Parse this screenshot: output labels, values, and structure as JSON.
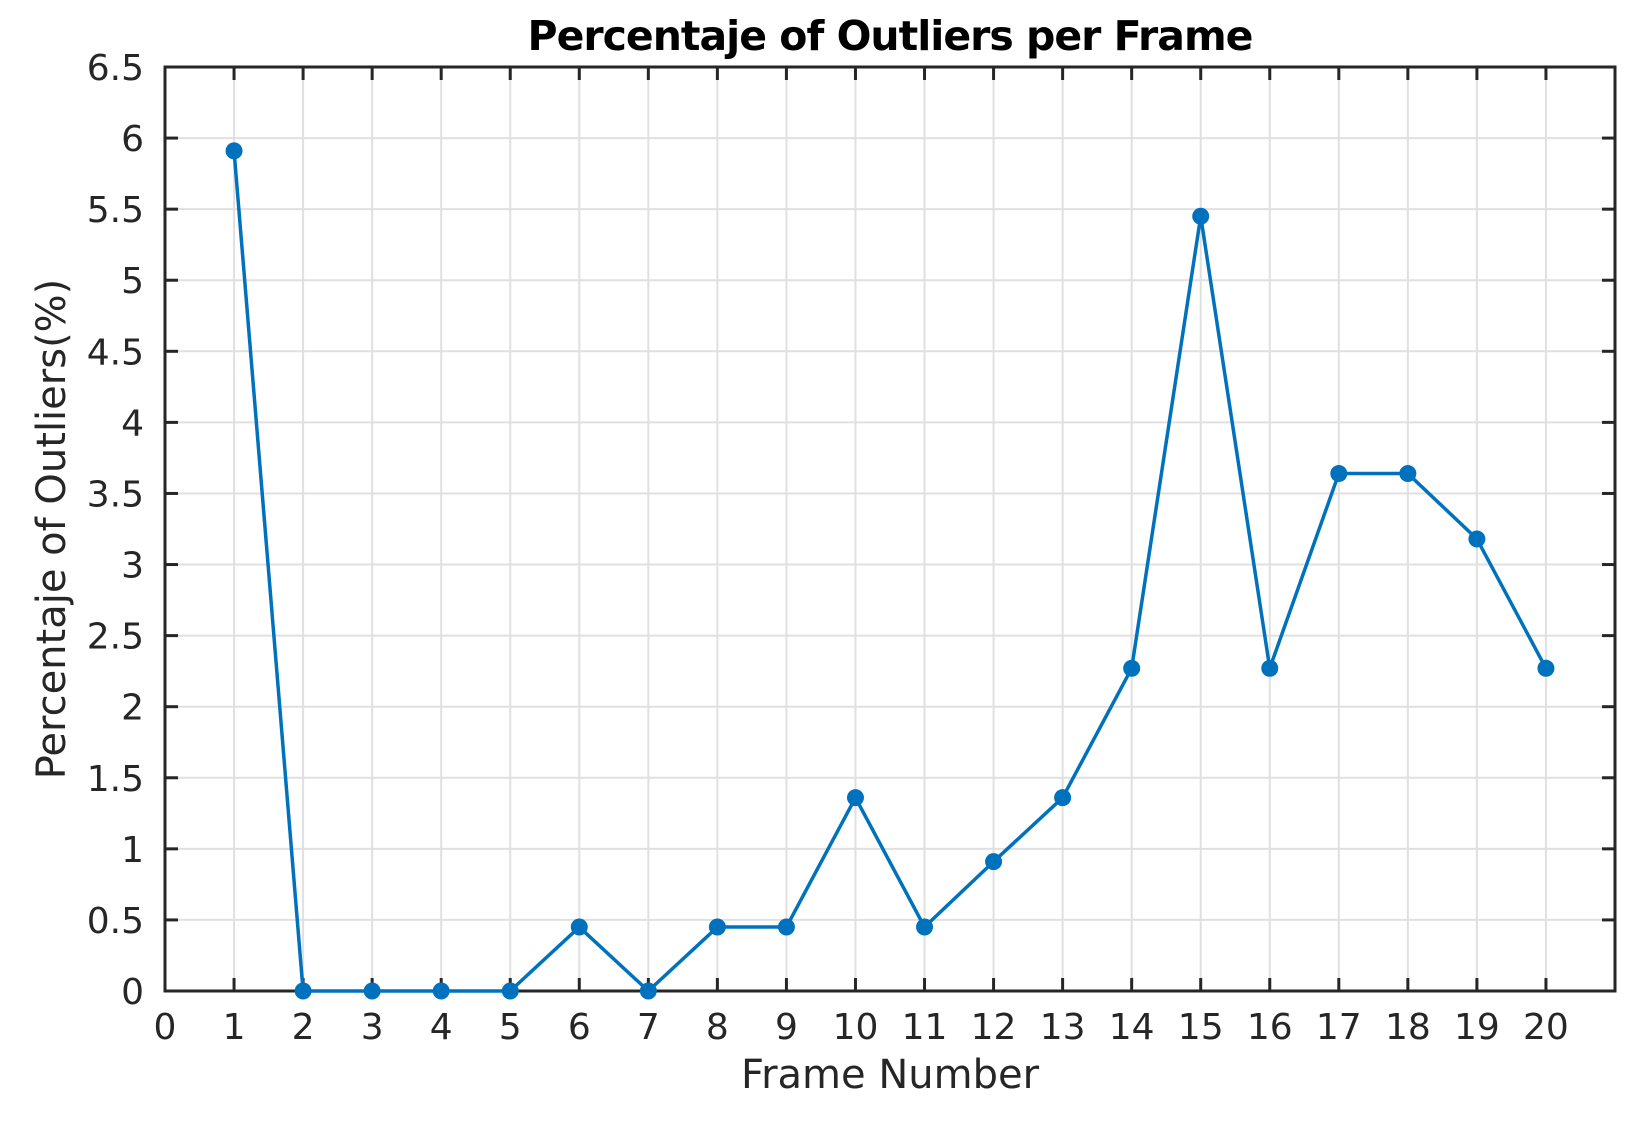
{
  "chart_data": {
    "type": "line",
    "title": "Percentaje of Outliers per Frame",
    "xlabel": "Frame Number",
    "ylabel": "Percentaje of Outliers(%)",
    "x": [
      1,
      2,
      3,
      4,
      5,
      6,
      7,
      8,
      9,
      10,
      11,
      12,
      13,
      14,
      15,
      16,
      17,
      18,
      19,
      20
    ],
    "y": [
      5.91,
      0,
      0,
      0,
      0,
      0.45,
      0,
      0.45,
      0.45,
      1.36,
      0.45,
      0.91,
      1.36,
      2.27,
      5.45,
      2.27,
      3.64,
      3.64,
      3.18,
      2.27
    ],
    "xlim": [
      0,
      21
    ],
    "ylim": [
      0,
      6.5
    ],
    "xtick_labels": [
      "0",
      "1",
      "2",
      "3",
      "4",
      "5",
      "6",
      "7",
      "8",
      "9",
      "10",
      "11",
      "12",
      "13",
      "14",
      "15",
      "16",
      "17",
      "18",
      "19",
      "20"
    ],
    "ytick_labels": [
      "0",
      "0.5",
      "1",
      "1.5",
      "2",
      "2.5",
      "3",
      "3.5",
      "4",
      "4.5",
      "5",
      "5.5",
      "6",
      "6.5"
    ],
    "grid": true,
    "legend": "none",
    "colors": {
      "line": "#0072BD",
      "marker": "#0072BD",
      "axis": "#262626",
      "grid": "#e0e0e0",
      "title": "#000000",
      "background": "#ffffff"
    }
  }
}
